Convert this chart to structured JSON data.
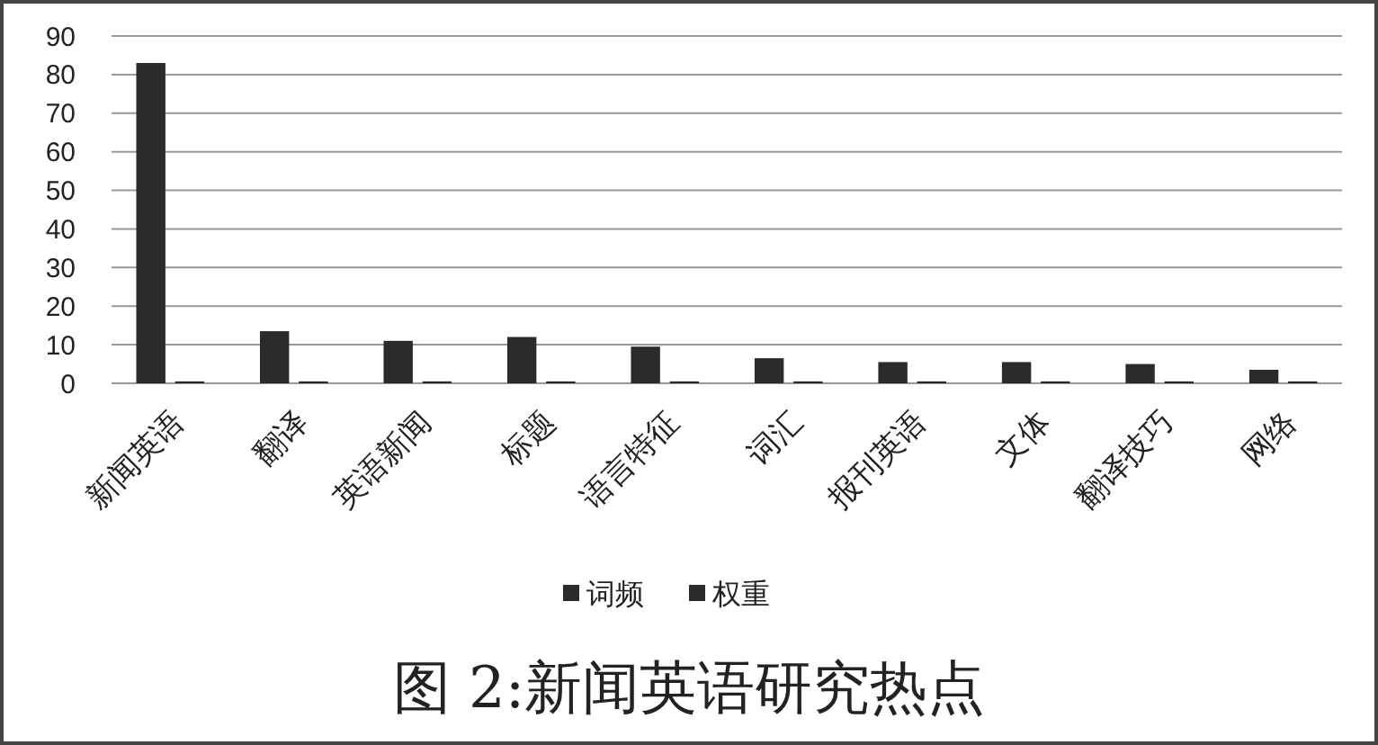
{
  "chart_data": {
    "type": "bar",
    "title": "图 2:新闻英语研究热点",
    "categories": [
      "新闻英语",
      "翻译",
      "英语新闻",
      "标题",
      "语言特征",
      "词汇",
      "报刊英语",
      "文体",
      "翻译技巧",
      "网络"
    ],
    "series": [
      {
        "name": "词频",
        "color": "#2b2b2b",
        "values": [
          83,
          13.5,
          11,
          12,
          9.5,
          6.5,
          5.5,
          5.5,
          5,
          3.5
        ]
      },
      {
        "name": "权重",
        "color": "#2b2b2b",
        "values": [
          0.5,
          0.5,
          0.5,
          0.5,
          0.5,
          0.5,
          0.5,
          0.5,
          0.5,
          0.5
        ]
      }
    ],
    "ylim": [
      0,
      90
    ],
    "yticks": [
      0,
      10,
      20,
      30,
      40,
      50,
      60,
      70,
      80,
      90
    ],
    "grid": "y",
    "legend": "bottom"
  }
}
